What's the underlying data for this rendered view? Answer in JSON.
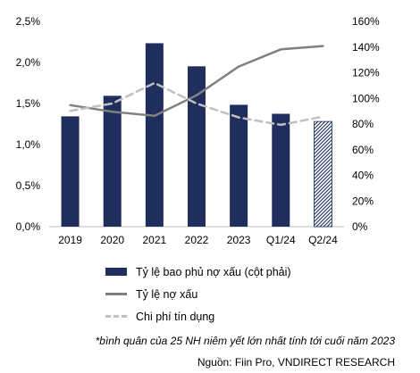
{
  "chart_data": {
    "type": "bar",
    "categories": [
      "2019",
      "2020",
      "2021",
      "2022",
      "2023",
      "Q1/24",
      "Q2/24"
    ],
    "left_axis": {
      "ticks": [
        "0,0%",
        "0,5%",
        "1,0%",
        "1,5%",
        "2,0%",
        "2,5%"
      ],
      "range": [
        0,
        2.5
      ]
    },
    "right_axis": {
      "ticks": [
        "0%",
        "20%",
        "40%",
        "60%",
        "80%",
        "100%",
        "120%",
        "140%",
        "160%"
      ],
      "range": [
        0,
        160
      ]
    },
    "series": [
      {
        "name": "Tỷ lệ bao phủ nợ xấu (cột phải)",
        "kind": "bar",
        "axis": "right",
        "color": "#1f2e5c",
        "values": [
          86,
          102,
          143,
          125,
          95,
          88,
          82
        ],
        "last_hatched": true
      },
      {
        "name": "Tỷ lệ nợ xấu",
        "kind": "line",
        "axis": "left",
        "color": "#808080",
        "values": [
          1.48,
          1.4,
          1.35,
          1.6,
          1.95,
          2.16,
          2.2
        ]
      },
      {
        "name": "Chi phí tín dụng",
        "kind": "line-dashed",
        "axis": "left",
        "color": "#c0c0c0",
        "values": [
          1.41,
          1.5,
          1.75,
          1.5,
          1.33,
          1.24,
          1.34
        ]
      }
    ],
    "grid": false,
    "legend_position": "bottom"
  },
  "footnote": "*bình quân của 25 NH niêm yết lớn nhất tính tới cuối năm 2023",
  "source": "Nguồn: Fiin Pro, VNDIRECT RESEARCH"
}
